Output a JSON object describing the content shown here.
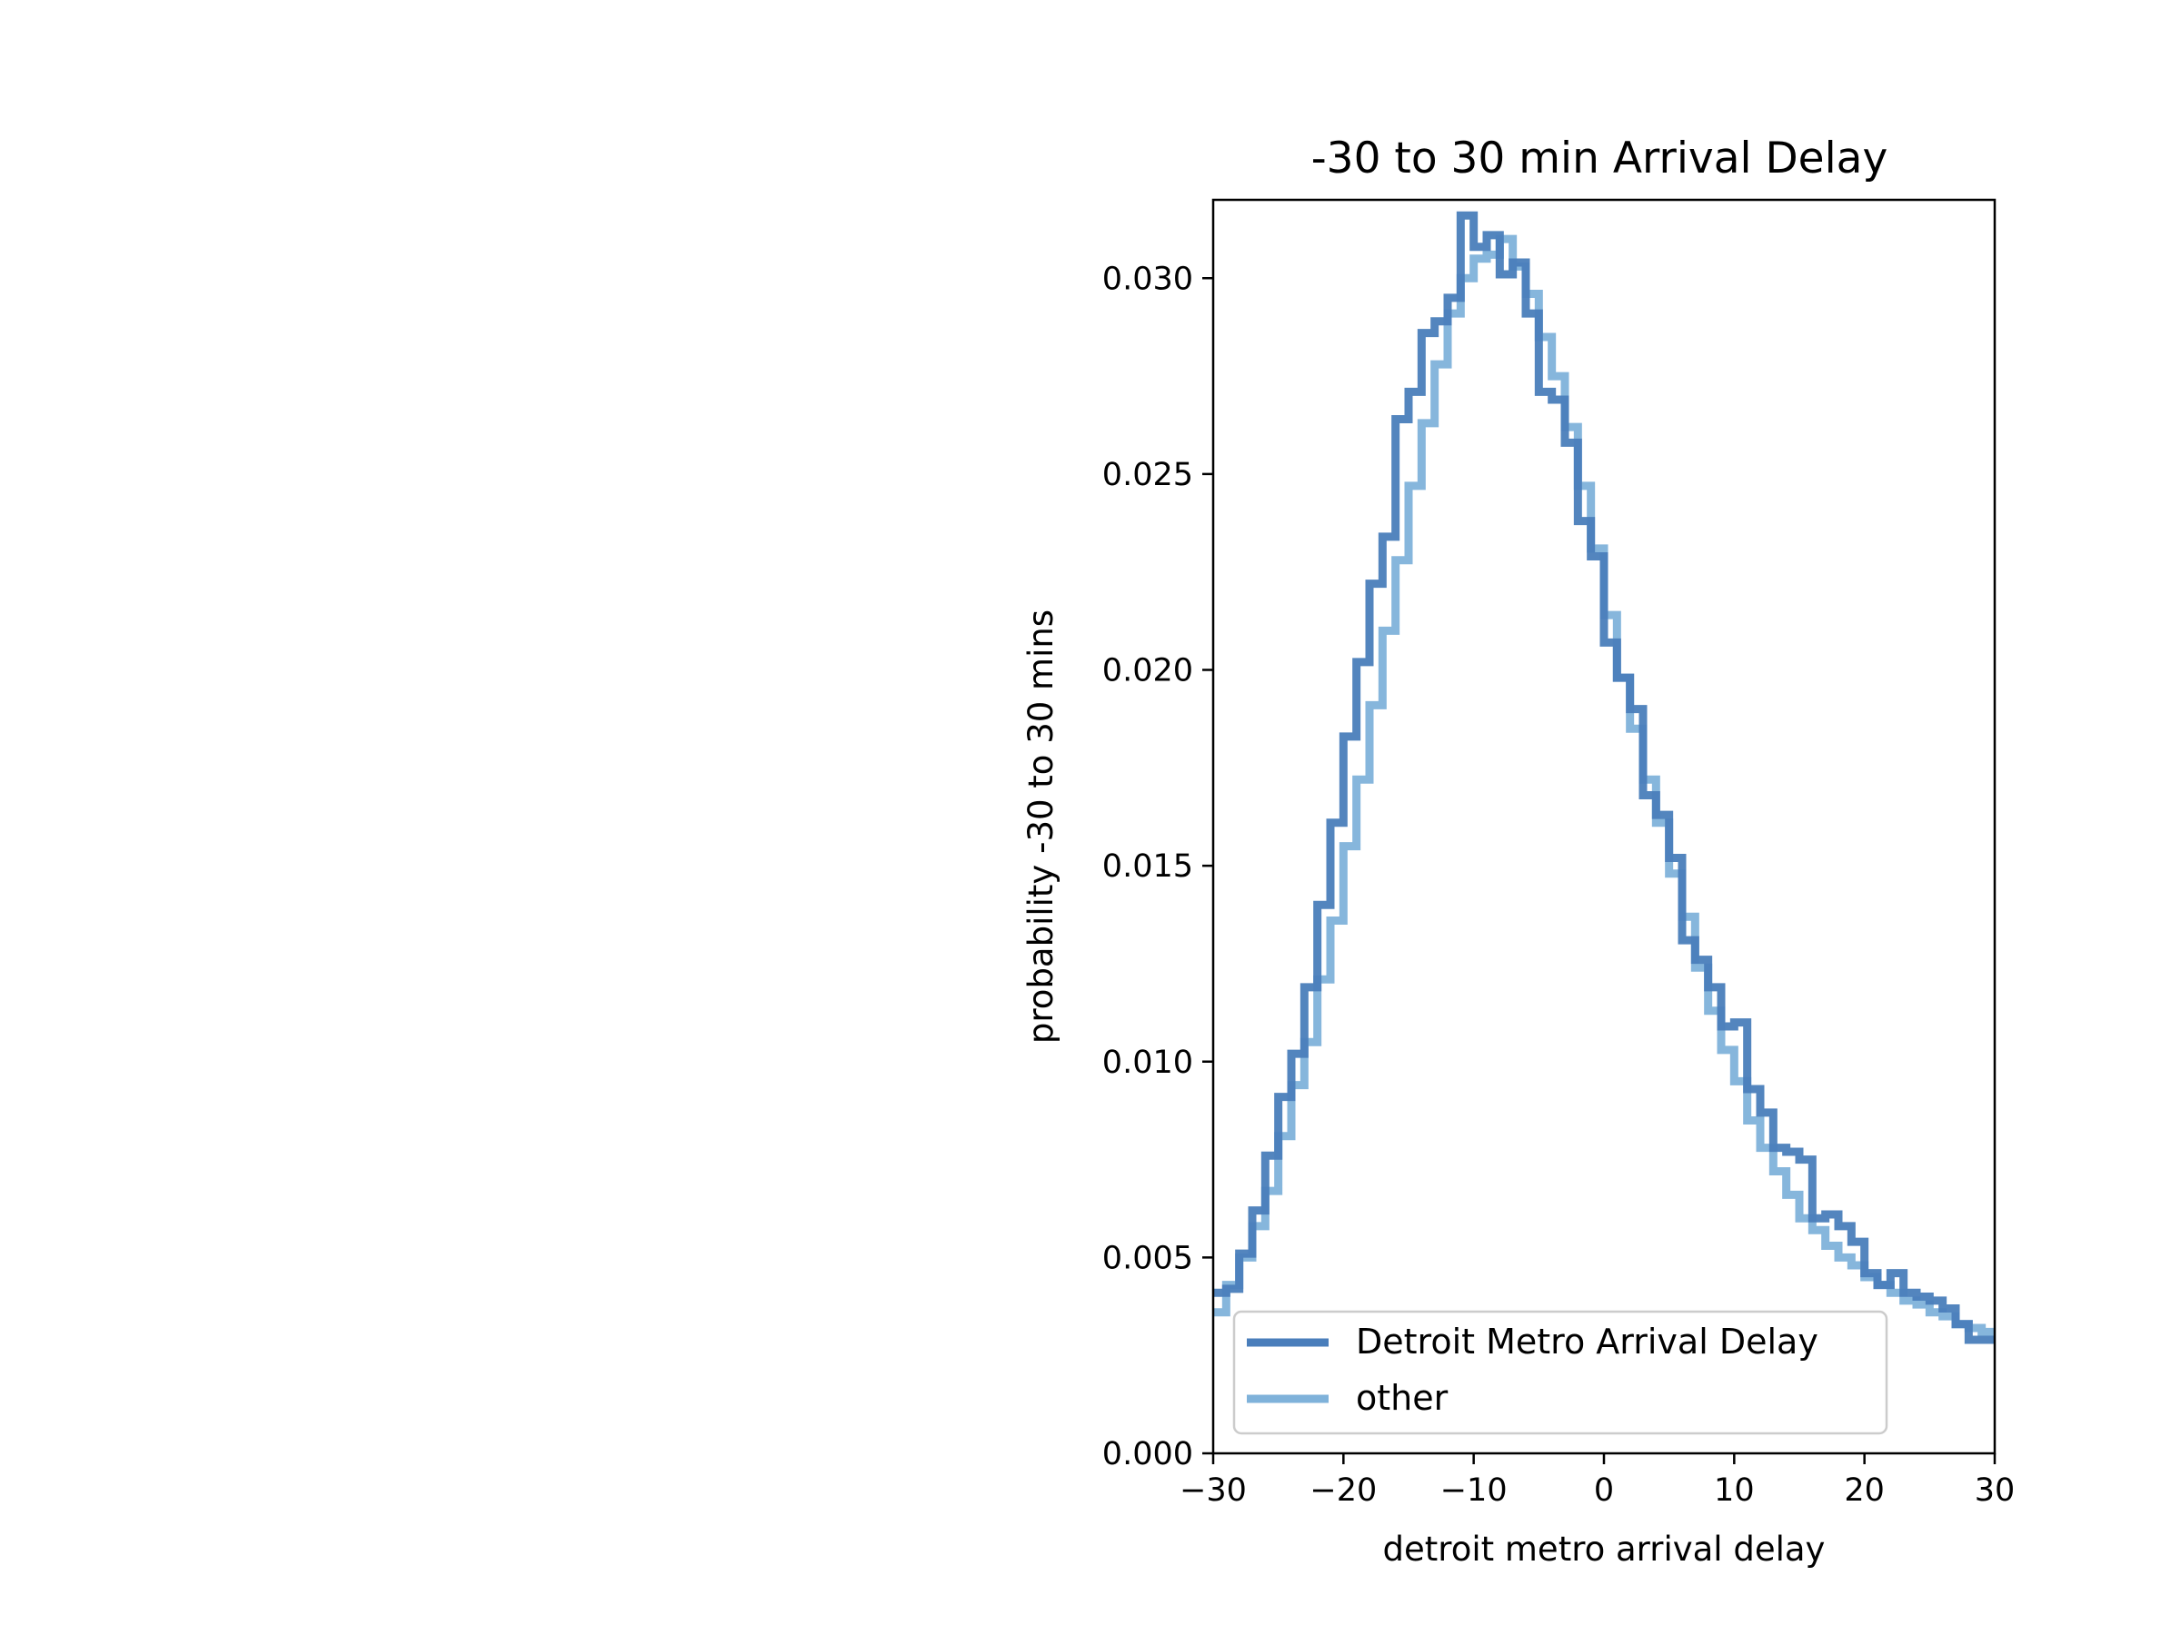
{
  "chart_data": {
    "type": "histogram-step",
    "title": "-30 to 30 min Arrival Delay",
    "xlabel": "detroit metro arrival delay",
    "ylabel": "probability -30 to 30 mins",
    "xlim": [
      -30,
      30
    ],
    "ylim": [
      0,
      0.032
    ],
    "xticks": [
      -30,
      -20,
      -10,
      0,
      10,
      20,
      30
    ],
    "xtick_labels": [
      "−30",
      "−20",
      "−10",
      "0",
      "10",
      "20",
      "30"
    ],
    "yticks": [
      0.0,
      0.005,
      0.01,
      0.015,
      0.02,
      0.025,
      0.03
    ],
    "ytick_labels": [
      "0.000",
      "0.005",
      "0.010",
      "0.015",
      "0.020",
      "0.025",
      "0.030"
    ],
    "grid": false,
    "legend_position": "lower left",
    "bin_edges": [
      -30,
      -29,
      -28,
      -27,
      -26,
      -25,
      -24,
      -23,
      -22,
      -21,
      -20,
      -19,
      -18,
      -17,
      -16,
      -15,
      -14,
      -13,
      -12,
      -11,
      -10,
      -9,
      -8,
      -7,
      -6,
      -5,
      -4,
      -3,
      -2,
      -1,
      0,
      1,
      2,
      3,
      4,
      5,
      6,
      7,
      8,
      9,
      10,
      11,
      12,
      13,
      14,
      15,
      16,
      17,
      18,
      19,
      20,
      21,
      22,
      23,
      24,
      25,
      26,
      27,
      28,
      29,
      30
    ],
    "series": [
      {
        "name": "Detroit Metro Arrival Delay",
        "color": "#4a7ebb",
        "values": [
          0.0041,
          0.0042,
          0.0051,
          0.0062,
          0.0076,
          0.0091,
          0.0102,
          0.0119,
          0.014,
          0.0161,
          0.0183,
          0.0202,
          0.0222,
          0.0234,
          0.0264,
          0.0271,
          0.0286,
          0.0289,
          0.0295,
          0.0316,
          0.0308,
          0.0311,
          0.0301,
          0.0304,
          0.0291,
          0.0271,
          0.0269,
          0.0258,
          0.0238,
          0.0229,
          0.0207,
          0.0198,
          0.019,
          0.0168,
          0.0163,
          0.0152,
          0.0131,
          0.0126,
          0.0119,
          0.0109,
          0.011,
          0.0093,
          0.0087,
          0.0078,
          0.0077,
          0.0075,
          0.006,
          0.0061,
          0.0058,
          0.0054,
          0.0046,
          0.0043,
          0.0046,
          0.0041,
          0.004,
          0.0039,
          0.0037,
          0.0033,
          0.0029,
          0.0029
        ]
      },
      {
        "name": "other",
        "color": "#7fb2da",
        "values": [
          0.0036,
          0.0043,
          0.005,
          0.0058,
          0.0067,
          0.0081,
          0.0094,
          0.0105,
          0.0121,
          0.0136,
          0.0155,
          0.0172,
          0.0191,
          0.021,
          0.0228,
          0.0247,
          0.0263,
          0.0278,
          0.0291,
          0.03,
          0.0305,
          0.0306,
          0.031,
          0.0303,
          0.0296,
          0.0285,
          0.0275,
          0.0262,
          0.0247,
          0.0231,
          0.0214,
          0.0198,
          0.0185,
          0.0172,
          0.0161,
          0.0148,
          0.0137,
          0.0124,
          0.0113,
          0.0103,
          0.0095,
          0.0085,
          0.0078,
          0.0072,
          0.0066,
          0.006,
          0.0057,
          0.0053,
          0.005,
          0.0048,
          0.0045,
          0.0043,
          0.0041,
          0.0039,
          0.0038,
          0.0036,
          0.0035,
          0.0033,
          0.0032,
          0.0031
        ]
      }
    ]
  }
}
